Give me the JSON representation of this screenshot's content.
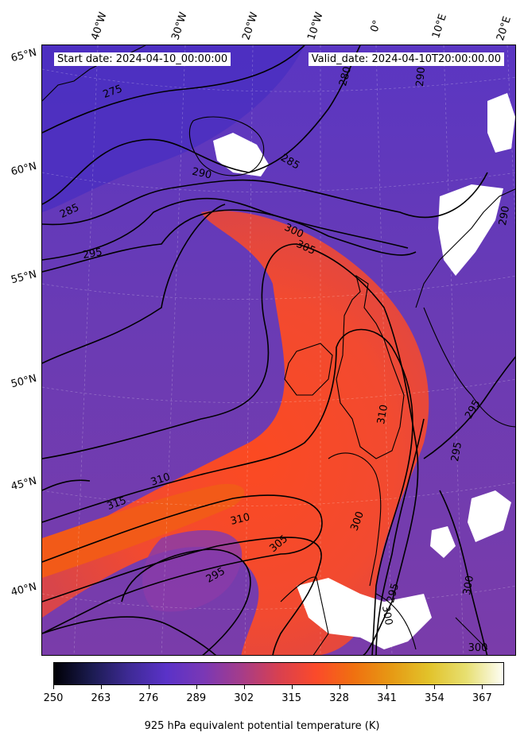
{
  "header": {
    "start_date": "Start date: 2024-04-10_00:00:00",
    "valid_date": "Valid_date: 2024-04-10T20:00:00.00"
  },
  "map": {
    "longitude_labels": [
      "40°W",
      "30°W",
      "20°W",
      "10°W",
      "0°",
      "10°E",
      "20°E"
    ],
    "latitude_labels": [
      "65°N",
      "60°N",
      "55°N",
      "50°N",
      "45°N",
      "40°N"
    ],
    "contour_labels": [
      "275",
      "280",
      "285",
      "285",
      "290",
      "290",
      "290",
      "295",
      "295",
      "295",
      "295",
      "295",
      "300",
      "300",
      "300",
      "300",
      "300",
      "305",
      "305",
      "310",
      "310",
      "310",
      "315"
    ]
  },
  "colorbar": {
    "label": "925 hPa equivalent potential temperature (K)",
    "ticks": [
      "250",
      "263",
      "276",
      "289",
      "302",
      "315",
      "328",
      "341",
      "354",
      "367"
    ],
    "range": [
      250,
      373
    ],
    "colormap": "CMRmap",
    "colors": [
      "#000005",
      "#1b1b50",
      "#3e2a95",
      "#5a32c8",
      "#7a38b5",
      "#a53c8a",
      "#d84050",
      "#fb4a2a",
      "#f07010",
      "#e69914",
      "#e2c22a",
      "#e7df70",
      "#fdfdf5"
    ]
  }
}
